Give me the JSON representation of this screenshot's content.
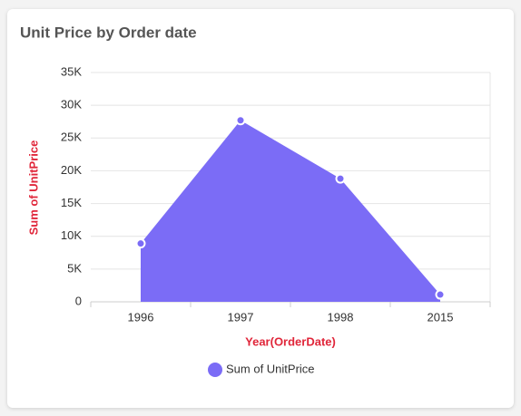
{
  "chart_data": {
    "type": "area",
    "title": "Unit Price by Order date",
    "x_label": "Year(OrderDate)",
    "y_label": "Sum of UnitPrice",
    "categories": [
      "1996",
      "1997",
      "1998",
      "2015"
    ],
    "series": [
      {
        "name": "Sum of UnitPrice",
        "color": "#7b6cf6",
        "values": [
          8900,
          27700,
          18800,
          1100
        ]
      }
    ],
    "ylim": [
      0,
      35000
    ],
    "yticks": [
      0,
      {
        "value": 5000,
        "label": "5K"
      },
      {
        "value": 10000,
        "label": "10K"
      },
      {
        "value": 15000,
        "label": "15K"
      },
      {
        "value": 20000,
        "label": "20K"
      },
      {
        "value": 25000,
        "label": "25K"
      },
      {
        "value": 30000,
        "label": "30K"
      },
      {
        "value": 35000,
        "label": "35K"
      }
    ],
    "grid": true,
    "legend": "bottom"
  }
}
